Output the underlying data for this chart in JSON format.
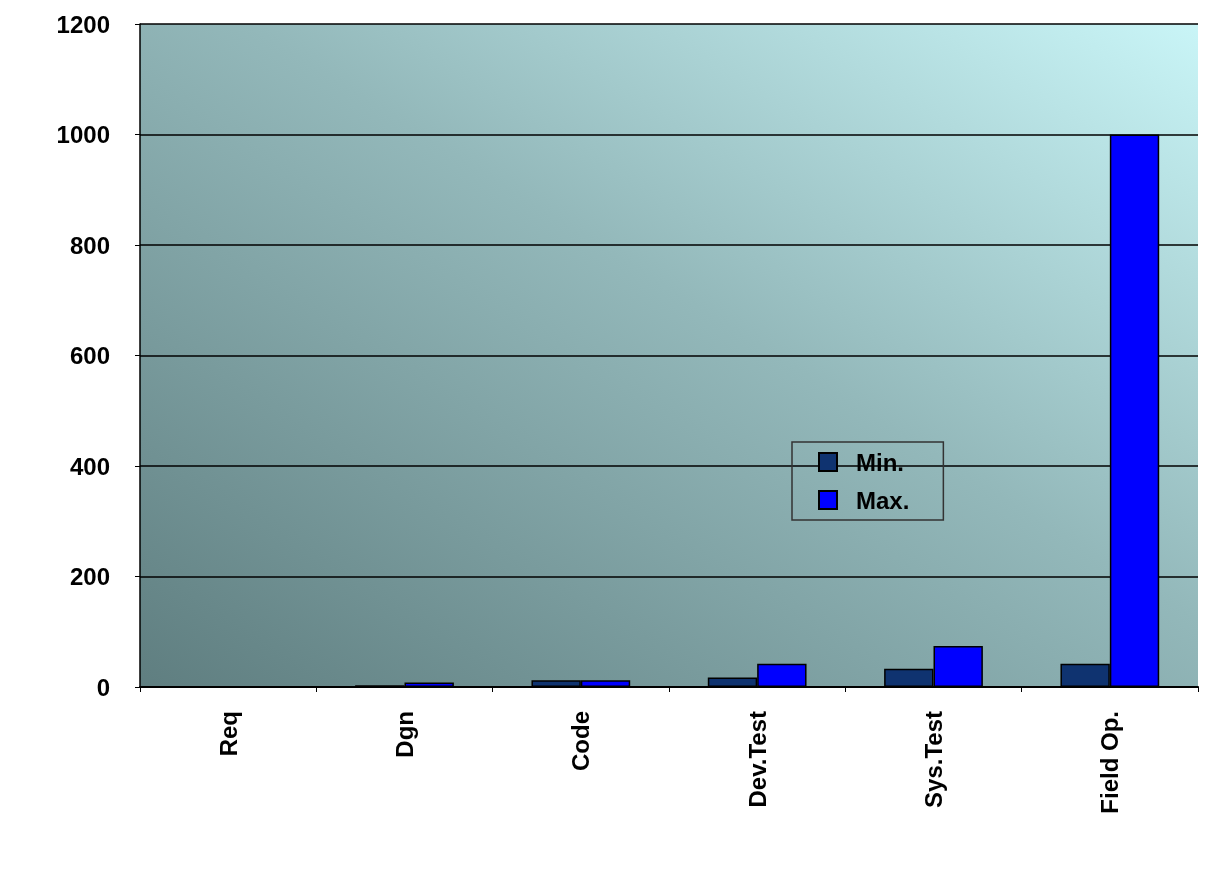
{
  "chart_data": {
    "type": "bar",
    "categories": [
      "Req",
      "Dgn",
      "Code",
      "Dev.Test",
      "Sys.Test",
      "Field Op."
    ],
    "series": [
      {
        "name": "Min.",
        "color": "#0f3370",
        "values": [
          null,
          3,
          12,
          17,
          33,
          42
        ]
      },
      {
        "name": "Max.",
        "color": "#0000ff",
        "values": [
          null,
          8,
          12,
          42,
          74,
          1000
        ]
      }
    ],
    "ylim": [
      0,
      1200
    ],
    "yticks": [
      0,
      200,
      400,
      600,
      800,
      1000,
      1200
    ],
    "grid": "y",
    "legend": "right"
  }
}
